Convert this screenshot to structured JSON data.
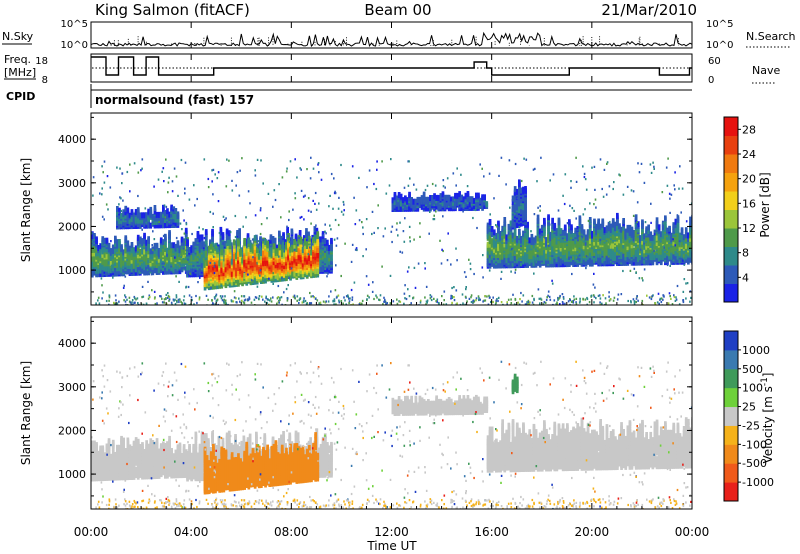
{
  "header": {
    "station": "King Salmon (fitACF)",
    "beam": "Beam 00",
    "date": "21/Mar/2010"
  },
  "status_panels": {
    "nsky_label": "N.Sky",
    "nsearch_label": "N.Search",
    "freq_label_1": "Freq.",
    "freq_label_2": "[MHz]",
    "nave_label": "Nave",
    "cpid_label": "CPID",
    "cpid_value": "normalsound (fast) 157",
    "noise_ticks": [
      "10^5",
      "10^0"
    ],
    "freq_ticks": [
      "18",
      "8"
    ],
    "nave_ticks": [
      "60",
      "0"
    ]
  },
  "axes": {
    "ylabel": "Slant Range [km]",
    "xlabel": "Time UT",
    "y_ticks": [
      "1000",
      "2000",
      "3000",
      "4000"
    ],
    "x_ticks": [
      "00:00",
      "04:00",
      "08:00",
      "12:00",
      "16:00",
      "20:00",
      "00:00"
    ]
  },
  "colorbars": {
    "power": {
      "label": "Power [dB]",
      "ticks": [
        "4",
        "8",
        "12",
        "16",
        "20",
        "24",
        "28"
      ],
      "colors": [
        "#1a22e6",
        "#2d5ab8",
        "#2e8a8a",
        "#4f9a4a",
        "#9bc53a",
        "#f2cf1a",
        "#f5a20e",
        "#f07a10",
        "#e8400f",
        "#e6120f"
      ]
    },
    "velocity": {
      "label": "Velocity [m s^-1]",
      "ticks": [
        "1000",
        "500",
        "100",
        "25",
        "-25",
        "-100",
        "-500",
        "-1000"
      ],
      "colors": [
        "#1f3fc4",
        "#3a7ab0",
        "#3f9a5a",
        "#6ed13a",
        "#c8c8c8",
        "#f5b21a",
        "#f08a1a",
        "#f05a1a",
        "#e8201a"
      ]
    }
  },
  "chart_data": [
    {
      "type": "heatmap",
      "title": "King Salmon (fitACF) Beam 00 21/Mar/2010",
      "xlabel": "Time UT",
      "ylabel": "Slant Range [km]",
      "colorbar_label": "Power [dB]",
      "xlim": [
        "00:00",
        "24:00"
      ],
      "ylim": [
        200,
        4600
      ],
      "clim": [
        0,
        30
      ],
      "regions": [
        {
          "t_start": 0.0,
          "t_end": 3.8,
          "range_min": 900,
          "range_max": 2000,
          "power_db": 10
        },
        {
          "t_start": 1.0,
          "t_end": 3.5,
          "range_min": 2000,
          "range_max": 2500,
          "power_db": 6
        },
        {
          "t_start": 3.8,
          "t_end": 9.6,
          "range_min": 900,
          "range_max": 2100,
          "power_db": 8
        },
        {
          "t_start": 4.5,
          "t_end": 9.0,
          "range_min": 600,
          "range_max": 1800,
          "power_db": 24
        },
        {
          "t_start": 12.0,
          "t_end": 15.8,
          "range_min": 2400,
          "range_max": 2800,
          "power_db": 5
        },
        {
          "t_start": 15.8,
          "t_end": 24.0,
          "range_min": 1100,
          "range_max": 2400,
          "power_db": 10
        },
        {
          "t_start": 16.8,
          "t_end": 17.3,
          "range_min": 2000,
          "range_max": 3300,
          "power_db": 5
        }
      ]
    },
    {
      "type": "heatmap",
      "xlabel": "Time UT",
      "ylabel": "Slant Range [km]",
      "colorbar_label": "Velocity [m s^-1]",
      "xlim": [
        "00:00",
        "24:00"
      ],
      "ylim": [
        200,
        4600
      ],
      "clim": [
        -1000,
        1000
      ],
      "regions": [
        {
          "t_start": 0.0,
          "t_end": 3.8,
          "range_min": 900,
          "range_max": 2000,
          "velocity": 0
        },
        {
          "t_start": 3.8,
          "t_end": 9.6,
          "range_min": 900,
          "range_max": 2100,
          "velocity": 0
        },
        {
          "t_start": 4.5,
          "t_end": 9.0,
          "range_min": 600,
          "range_max": 1800,
          "velocity": -120
        },
        {
          "t_start": 12.0,
          "t_end": 15.8,
          "range_min": 2400,
          "range_max": 2800,
          "velocity": 0
        },
        {
          "t_start": 15.8,
          "t_end": 24.0,
          "range_min": 1100,
          "range_max": 2400,
          "velocity": 0
        },
        {
          "t_start": 16.8,
          "t_end": 17.0,
          "range_min": 2900,
          "range_max": 3300,
          "velocity": 100
        }
      ]
    }
  ]
}
